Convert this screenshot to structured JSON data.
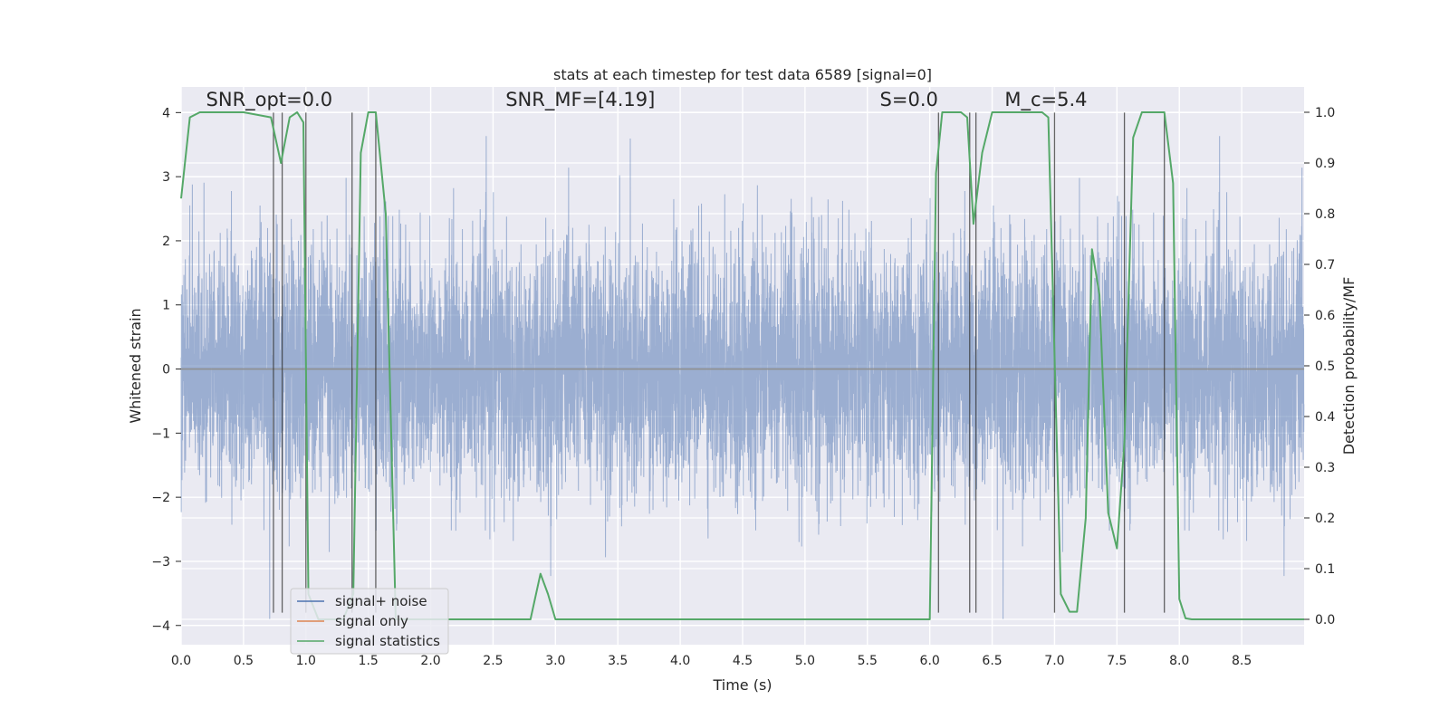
{
  "chart_data": {
    "type": "line",
    "title": "stats at each timestep for test data 6589 [signal=0]",
    "xlabel": "Time (s)",
    "ylabel": "Whitened strain",
    "y2label": "Detection probability/MF",
    "xlim": [
      0,
      9
    ],
    "ylim": [
      -4.3,
      4.4
    ],
    "y2lim": [
      -0.05,
      1.05
    ],
    "x_ticks": [
      "0.0",
      "0.5",
      "1.0",
      "1.5",
      "2.0",
      "2.5",
      "3.0",
      "3.5",
      "4.0",
      "4.5",
      "5.0",
      "5.5",
      "6.0",
      "6.5",
      "7.0",
      "7.5",
      "8.0",
      "8.5"
    ],
    "y_ticks": [
      "4",
      "3",
      "2",
      "1",
      "0",
      "−1",
      "−2",
      "−3",
      "−4"
    ],
    "y2_ticks": [
      "1.0",
      "0.9",
      "0.8",
      "0.7",
      "0.6",
      "0.5",
      "0.4",
      "0.3",
      "0.2",
      "0.1",
      "0.0"
    ],
    "grid": true,
    "legend_position": "lower-left",
    "annotations": [
      {
        "id": "snr-opt",
        "text": "SNR_opt=0.0",
        "x": 0.2,
        "y": 4.1
      },
      {
        "id": "snr-mf",
        "text": "SNR_MF=[4.19]",
        "x": 2.6,
        "y": 4.1
      },
      {
        "id": "s-value",
        "text": "S=0.0",
        "x": 5.6,
        "y": 4.1
      },
      {
        "id": "mc-value",
        "text": "M_c=5.4",
        "x": 6.6,
        "y": 4.1
      }
    ],
    "detection_lines_x": [
      0.74,
      0.81,
      1.0,
      1.37,
      1.56,
      6.07,
      6.32,
      6.37,
      7.0,
      7.56,
      7.88
    ],
    "series": [
      {
        "name": "signal+ noise",
        "color": "#4c72b0",
        "axis": "left",
        "description_stats": {
          "typical_range": [
            -2.2,
            2.2
          ],
          "extremes": [
            -3.9,
            3.8
          ],
          "sample_rate_hz": 2048
        }
      },
      {
        "name": "signal only",
        "color": "#dd8452",
        "axis": "left",
        "x": [
          0,
          9
        ],
        "y": [
          0,
          0
        ]
      },
      {
        "name": "signal statistics",
        "color": "#55a868",
        "axis": "right",
        "x": [
          0.0,
          0.07,
          0.15,
          0.5,
          0.72,
          0.8,
          0.87,
          0.93,
          0.98,
          1.02,
          1.1,
          1.3,
          1.38,
          1.44,
          1.5,
          1.56,
          1.64,
          1.72,
          2.0,
          2.5,
          2.8,
          2.88,
          2.94,
          3.0,
          3.5,
          4.0,
          4.5,
          5.0,
          5.5,
          6.0,
          6.05,
          6.1,
          6.25,
          6.3,
          6.35,
          6.42,
          6.5,
          6.6,
          6.9,
          6.95,
          7.05,
          7.12,
          7.18,
          7.25,
          7.3,
          7.36,
          7.43,
          7.5,
          7.56,
          7.63,
          7.7,
          7.8,
          7.88,
          7.95,
          8.0,
          8.05,
          8.1,
          8.5,
          9.0
        ],
        "y": [
          0.83,
          0.99,
          1.0,
          1.0,
          0.99,
          0.9,
          0.99,
          1.0,
          0.98,
          0.05,
          0.0,
          0.0,
          0.05,
          0.92,
          1.0,
          1.0,
          0.8,
          0.0,
          0.0,
          0.0,
          0.0,
          0.09,
          0.05,
          0.0,
          0.0,
          0.0,
          0.0,
          0.0,
          0.0,
          0.0,
          0.88,
          1.0,
          1.0,
          0.99,
          0.78,
          0.92,
          1.0,
          1.0,
          1.0,
          0.99,
          0.05,
          0.015,
          0.015,
          0.2,
          0.73,
          0.64,
          0.21,
          0.14,
          0.35,
          0.95,
          1.0,
          1.0,
          1.0,
          0.86,
          0.04,
          0.002,
          0.0,
          0.0,
          0.0
        ]
      }
    ]
  }
}
